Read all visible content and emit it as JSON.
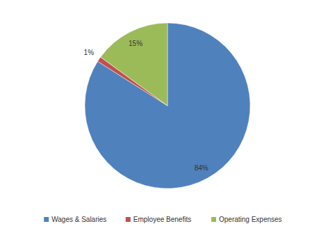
{
  "chart_data": {
    "type": "pie",
    "categories": [
      "Wages & Salaries",
      "Employee Benefits",
      "Operating Expenses"
    ],
    "values": [
      84,
      1,
      15
    ],
    "value_labels": [
      "84%",
      "1%",
      "15%"
    ],
    "colors": [
      "#4f81bd",
      "#c0504d",
      "#9bbb59"
    ],
    "data_labels": true,
    "legend": "bottom"
  }
}
